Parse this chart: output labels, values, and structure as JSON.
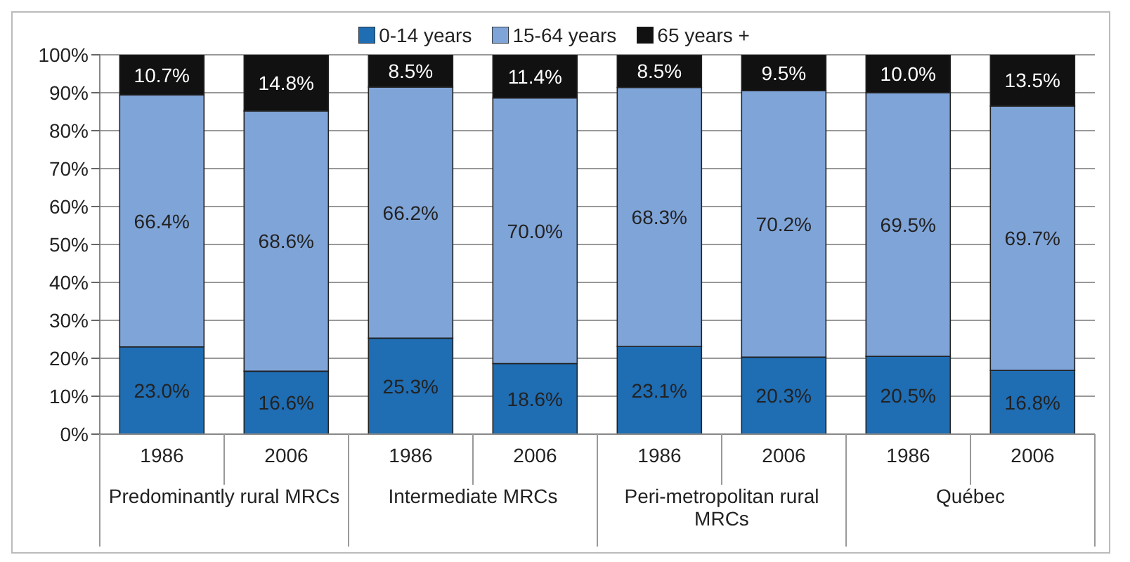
{
  "chart_data": {
    "type": "bar",
    "stacked": true,
    "categories": [
      "1986",
      "2006",
      "1986",
      "2006",
      "1986",
      "2006",
      "1986",
      "2006"
    ],
    "annotations": [
      "Predominantly rural MRCs",
      "Intermediate MRCs",
      "Peri-metropolitan rural MRCs",
      "Québec"
    ],
    "series": [
      {
        "name": "0-14 years",
        "color": "#1f6db3",
        "values": [
          23.0,
          16.6,
          25.3,
          18.6,
          23.1,
          20.3,
          20.5,
          16.8
        ],
        "value_labels": [
          "23.0%",
          "16.6%",
          "25.3%",
          "18.6%",
          "23.1%",
          "20.3%",
          "20.5%",
          "16.8%"
        ]
      },
      {
        "name": "15-64 years",
        "color": "#7fa4d8",
        "values": [
          66.4,
          68.6,
          66.2,
          70.0,
          68.3,
          70.2,
          69.5,
          69.7
        ],
        "value_labels": [
          "66.4%",
          "68.6%",
          "66.2%",
          "70.0%",
          "68.3%",
          "70.2%",
          "69.5%",
          "69.7%"
        ]
      },
      {
        "name": "65 years +",
        "color": "#111111",
        "values": [
          10.7,
          14.8,
          8.5,
          11.4,
          8.5,
          9.5,
          10.0,
          13.5
        ],
        "value_labels": [
          "10.7%",
          "14.8%",
          "8.5%",
          "11.4%",
          "8.5%",
          "9.5%",
          "10.0%",
          "13.5%"
        ]
      }
    ],
    "ylim": [
      0,
      100
    ],
    "yticks": [
      {
        "value": 0,
        "label": "0%"
      },
      {
        "value": 10,
        "label": "10%"
      },
      {
        "value": 20,
        "label": "20%"
      },
      {
        "value": 30,
        "label": "30%"
      },
      {
        "value": 40,
        "label": "40%"
      },
      {
        "value": 50,
        "label": "50%"
      },
      {
        "value": 60,
        "label": "60%"
      },
      {
        "value": 70,
        "label": "70%"
      },
      {
        "value": 80,
        "label": "80%"
      },
      {
        "value": 90,
        "label": "90%"
      },
      {
        "value": 100,
        "label": "100%"
      }
    ],
    "grid": "y",
    "legend": "top"
  }
}
